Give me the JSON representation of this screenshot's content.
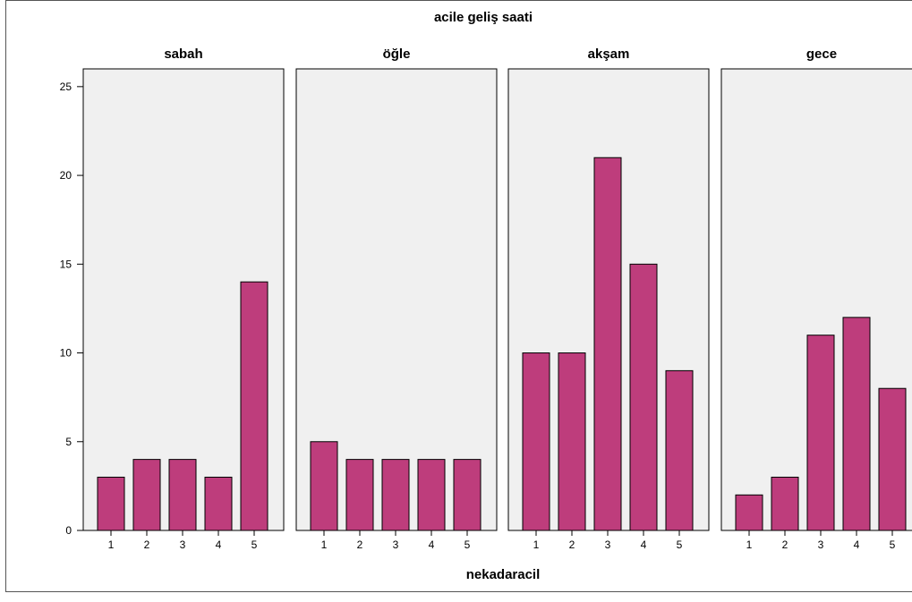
{
  "chart_data": {
    "type": "bar",
    "title": "acile geliş saati",
    "xlabel": "nekadaracil",
    "ylabel": "",
    "ylim": [
      0,
      26
    ],
    "yticks": [
      0,
      5,
      10,
      15,
      20,
      25
    ],
    "categories": [
      "1",
      "2",
      "3",
      "4",
      "5"
    ],
    "bar_color": "#be3d7c",
    "panel_bg_color": "#f0f0f0",
    "grid": false,
    "panels": [
      {
        "name": "sabah",
        "values": [
          3,
          4,
          4,
          3,
          14
        ]
      },
      {
        "name": "öğle",
        "values": [
          5,
          4,
          4,
          4,
          4
        ]
      },
      {
        "name": "akşam",
        "values": [
          10,
          10,
          21,
          15,
          9
        ]
      },
      {
        "name": "gece",
        "values": [
          2,
          3,
          11,
          12,
          8
        ]
      }
    ]
  }
}
